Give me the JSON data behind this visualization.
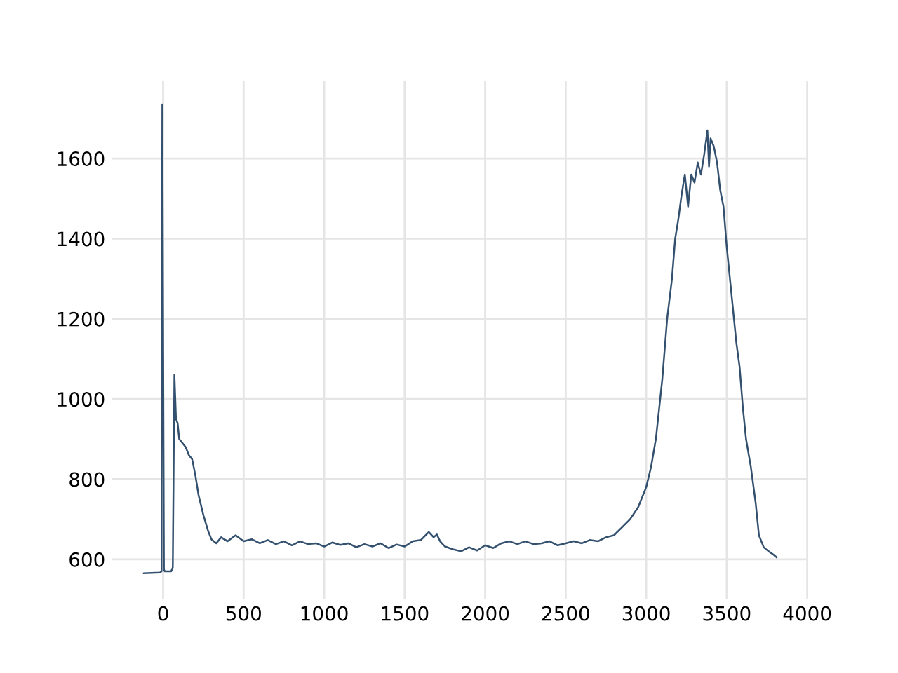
{
  "chart_data": {
    "type": "line",
    "x": [
      -120,
      -20,
      -10,
      -5,
      5,
      10,
      50,
      60,
      70,
      80,
      90,
      100,
      120,
      140,
      160,
      180,
      200,
      220,
      250,
      280,
      300,
      330,
      360,
      400,
      450,
      500,
      550,
      600,
      650,
      700,
      750,
      800,
      850,
      900,
      950,
      1000,
      1050,
      1100,
      1150,
      1200,
      1250,
      1300,
      1350,
      1400,
      1450,
      1500,
      1550,
      1600,
      1650,
      1680,
      1700,
      1720,
      1750,
      1800,
      1850,
      1900,
      1950,
      2000,
      2050,
      2100,
      2150,
      2200,
      2250,
      2300,
      2350,
      2400,
      2450,
      2500,
      2550,
      2600,
      2650,
      2700,
      2750,
      2800,
      2850,
      2900,
      2950,
      3000,
      3030,
      3060,
      3100,
      3130,
      3160,
      3180,
      3200,
      3220,
      3240,
      3260,
      3280,
      3300,
      3320,
      3340,
      3360,
      3380,
      3390,
      3400,
      3420,
      3440,
      3460,
      3480,
      3500,
      3520,
      3540,
      3560,
      3580,
      3600,
      3620,
      3650,
      3680,
      3700,
      3730,
      3760,
      3790,
      3810
    ],
    "series": [
      {
        "color": "#34506f",
        "values": [
          565,
          567,
          570,
          1735,
          575,
          570,
          570,
          580,
          1060,
          950,
          940,
          900,
          890,
          880,
          860,
          850,
          810,
          760,
          710,
          670,
          650,
          640,
          655,
          645,
          660,
          645,
          650,
          640,
          648,
          638,
          645,
          635,
          645,
          638,
          640,
          632,
          642,
          636,
          640,
          630,
          638,
          632,
          640,
          628,
          637,
          632,
          645,
          648,
          668,
          655,
          662,
          645,
          632,
          625,
          620,
          630,
          622,
          635,
          628,
          640,
          645,
          638,
          645,
          638,
          640,
          645,
          635,
          640,
          645,
          640,
          648,
          645,
          655,
          660,
          680,
          700,
          730,
          780,
          830,
          900,
          1050,
          1200,
          1300,
          1400,
          1450,
          1510,
          1560,
          1480,
          1560,
          1540,
          1590,
          1560,
          1610,
          1670,
          1580,
          1650,
          1630,
          1590,
          1520,
          1480,
          1380,
          1300,
          1220,
          1140,
          1080,
          980,
          900,
          830,
          740,
          660,
          630,
          620,
          612,
          605
        ]
      }
    ],
    "xlim": [
      -316,
      4006
    ],
    "ylim": [
      501,
      1794
    ],
    "xticks": [
      0,
      500,
      1000,
      1500,
      2000,
      2500,
      3000,
      3500,
      4000
    ],
    "yticks": [
      600,
      800,
      1000,
      1200,
      1400,
      1600
    ],
    "grid": true,
    "legend": false,
    "marker": "none",
    "line_style": "solid"
  }
}
